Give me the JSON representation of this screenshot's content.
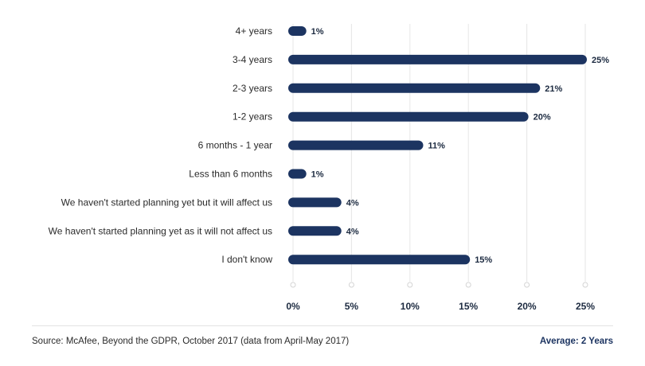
{
  "colors": {
    "bar": "#1c3461",
    "grid": "#e6e6e6",
    "text": "#2a2a2a"
  },
  "chart_data": {
    "type": "bar",
    "orientation": "horizontal",
    "categories": [
      "4+ years",
      "3-4 years",
      "2-3 years",
      "1-2 years",
      "6 months - 1 year",
      "Less than 6 months",
      "We haven't started planning yet but it will affect us",
      "We haven't started planning yet as it will not affect us",
      "I don't know"
    ],
    "values": [
      1,
      25,
      21,
      20,
      11,
      1,
      4,
      4,
      15
    ],
    "value_labels": [
      "1%",
      "25%",
      "21%",
      "20%",
      "11%",
      "1%",
      "4%",
      "4%",
      "15%"
    ],
    "x_ticks": [
      "0%",
      "5%",
      "10%",
      "15%",
      "20%",
      "25%"
    ],
    "xlim": [
      0,
      25
    ],
    "grid": true,
    "title": "",
    "xlabel": "",
    "ylabel": ""
  },
  "footer": {
    "source": "Source: McAfee, Beyond the GDPR, October 2017 (data from April-May 2017)",
    "average_label": "Average:",
    "average_value": "2 Years"
  }
}
